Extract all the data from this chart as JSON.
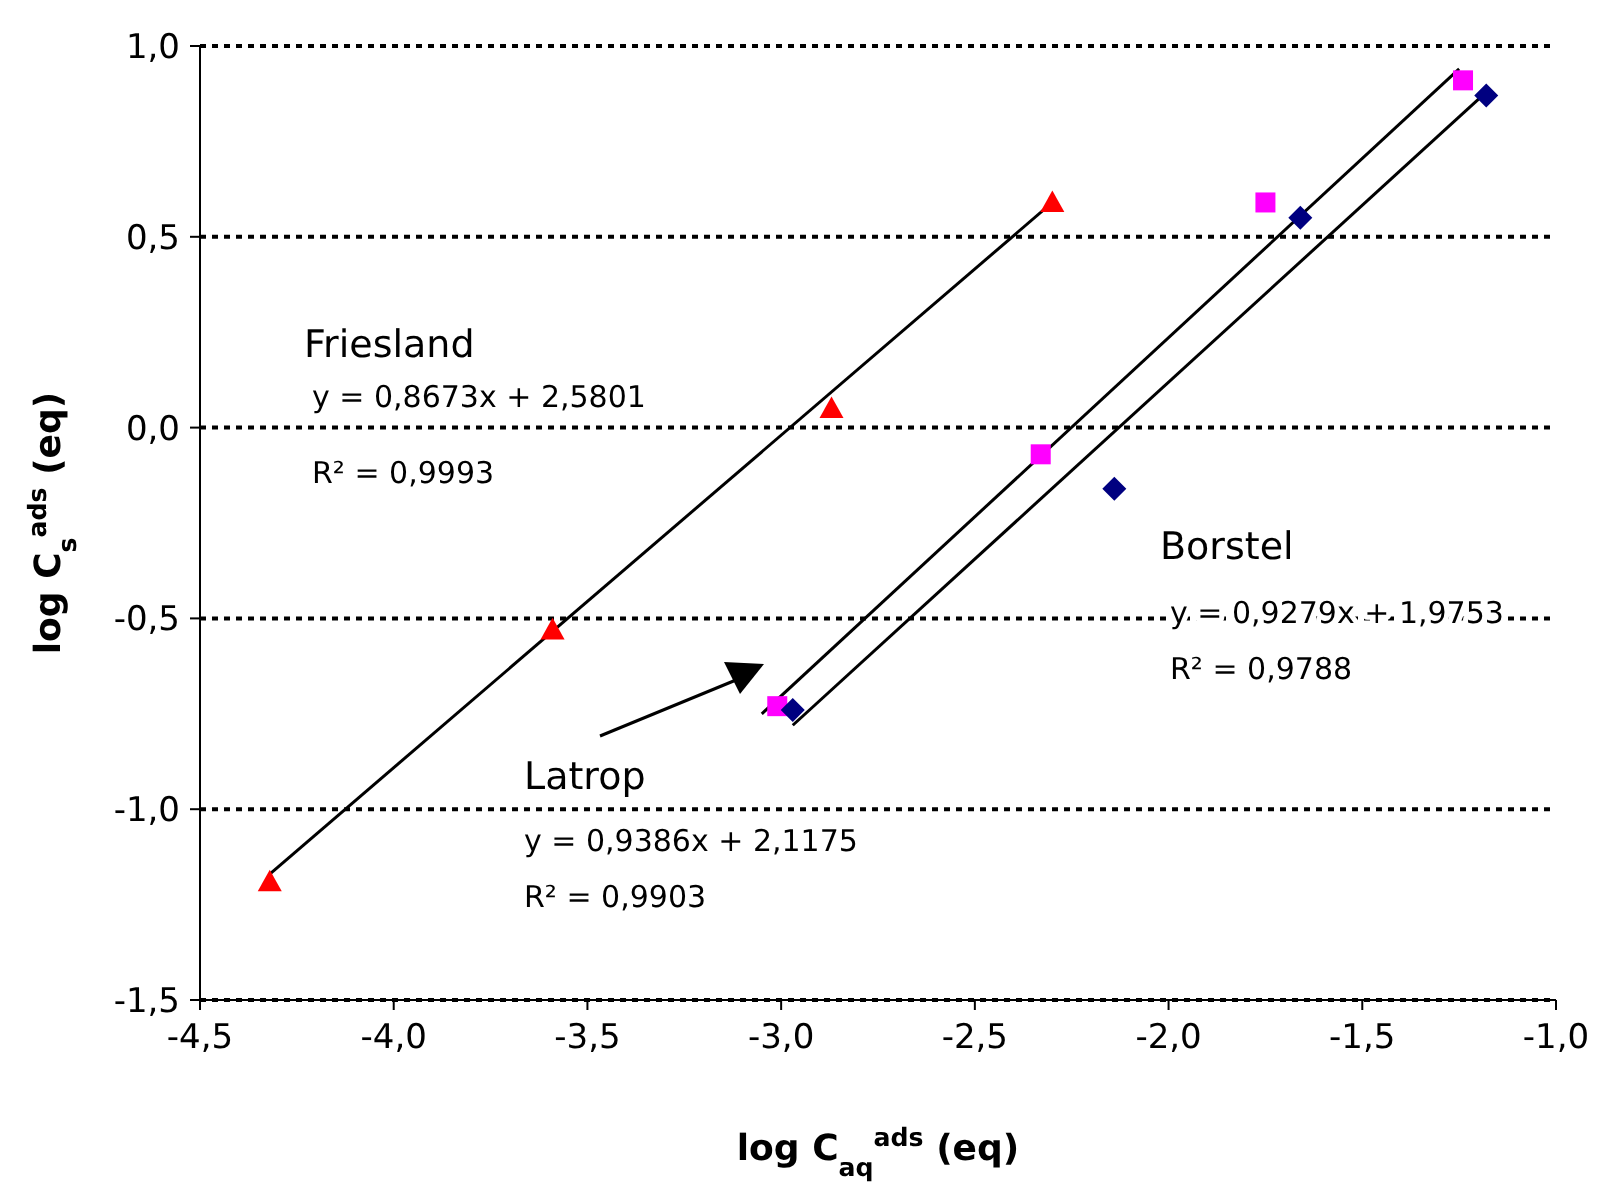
{
  "chart_data": {
    "type": "scatter",
    "xlabel": "log C$_{aq}$$^{ads}$ (eq)",
    "ylabel": "log C$_{s}$$^{ads}$ (eq)",
    "xlim": [
      -4.5,
      -1.0
    ],
    "ylim": [
      -1.5,
      1.0
    ],
    "xticks": [
      {
        "value": -4.5,
        "label": "-4,5"
      },
      {
        "value": -4.0,
        "label": "-4,0"
      },
      {
        "value": -3.5,
        "label": "-3,5"
      },
      {
        "value": -3.0,
        "label": "-3,0"
      },
      {
        "value": -2.5,
        "label": "-2,5"
      },
      {
        "value": -2.0,
        "label": "-2,0"
      },
      {
        "value": -1.5,
        "label": "-1,5"
      },
      {
        "value": -1.0,
        "label": "-1,0"
      }
    ],
    "yticks": [
      {
        "value": -1.5,
        "label": "-1,5"
      },
      {
        "value": -1.0,
        "label": "-1,0"
      },
      {
        "value": -0.5,
        "label": "-0,5"
      },
      {
        "value": 0.0,
        "label": "0,0"
      },
      {
        "value": 0.5,
        "label": "0,5"
      },
      {
        "value": 1.0,
        "label": "1,0"
      }
    ],
    "grid": "y",
    "series": [
      {
        "type": "line",
        "color": "#000000",
        "marker": "none",
        "line_style": "solid",
        "x": [
          -4.32,
          -2.3
        ],
        "values": [
          -1.17,
          0.59
        ]
      },
      {
        "type": "line",
        "color": "#000000",
        "marker": "none",
        "line_style": "solid",
        "x": [
          -3.05,
          -1.25
        ],
        "values": [
          -0.75,
          0.94
        ]
      },
      {
        "type": "line",
        "color": "#000000",
        "marker": "none",
        "line_style": "solid",
        "x": [
          -2.97,
          -1.19
        ],
        "values": [
          -0.78,
          0.87
        ]
      },
      {
        "color": "#ff0000",
        "marker": "triangle",
        "x": [
          -4.32,
          -3.59,
          -2.87,
          -2.3
        ],
        "values": [
          -1.19,
          -0.53,
          0.05,
          0.59
        ]
      },
      {
        "color": "#ff00ff",
        "marker": "square",
        "x": [
          -3.01,
          -2.33,
          -1.75,
          -1.24
        ],
        "values": [
          -0.73,
          -0.07,
          0.59,
          0.91
        ]
      },
      {
        "color": "#000080",
        "marker": "diamond",
        "x": [
          -2.97,
          -2.14,
          -1.66,
          -1.18
        ],
        "values": [
          -0.74,
          -0.16,
          0.55,
          0.87
        ]
      }
    ],
    "annotations": [
      "Friesland",
      "y = 0,8673x + 2,5801",
      "R² = 0,9993",
      "Borstel",
      "y = 0,9279x + 1,9753",
      "R² = 0,9788",
      "Latrop",
      "y = 0,9386x + 2,1175",
      "R² = 0,9903"
    ]
  }
}
